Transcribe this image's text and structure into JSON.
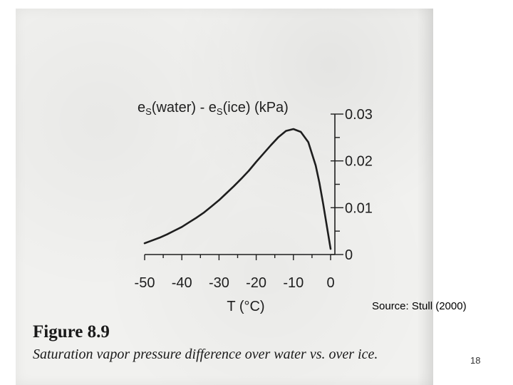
{
  "chart_data": {
    "type": "line",
    "title": "",
    "ylabel": "es(water) - es(ice)   (kPa)",
    "ylabel_parts": {
      "e1": "e",
      "s1": "S",
      "t1": "(water) - ",
      "e2": "e",
      "s2": "S",
      "t2": "(ice)   (kPa)"
    },
    "xlabel": "T (°C)",
    "xlim": [
      -50,
      0
    ],
    "ylim": [
      0,
      0.03
    ],
    "x_ticks": [
      -50,
      -40,
      -30,
      -20,
      -10,
      0
    ],
    "x_tick_labels": [
      "-50",
      "-40",
      "-30",
      "-20",
      "-10",
      "0"
    ],
    "y_ticks": [
      0,
      0.01,
      0.02,
      0.03
    ],
    "y_tick_labels": [
      "0",
      "0.01",
      "0.02",
      "0.03"
    ],
    "y_axis_position": "right",
    "grid": false,
    "series": [
      {
        "x": [
          -50,
          -48,
          -46,
          -44,
          -42,
          -40,
          -38,
          -36,
          -34,
          -32,
          -30,
          -28,
          -26,
          -24,
          -22,
          -20,
          -18,
          -16,
          -14,
          -12,
          -10,
          -8,
          -6,
          -4,
          -3,
          -2,
          -1,
          0
        ],
        "y": [
          0.0024,
          0.003,
          0.0036,
          0.0043,
          0.0051,
          0.0059,
          0.0069,
          0.0079,
          0.009,
          0.0103,
          0.0116,
          0.0131,
          0.0146,
          0.0162,
          0.0179,
          0.0198,
          0.0216,
          0.0234,
          0.0251,
          0.0264,
          0.0268,
          0.0262,
          0.024,
          0.019,
          0.0153,
          0.0108,
          0.006,
          0.0012
        ]
      }
    ]
  },
  "caption": {
    "figure_label": "Figure 8.9",
    "text": "Saturation vapor pressure difference over water vs. over ice."
  },
  "source": "Source: Stull (2000)",
  "slide_number": "18",
  "colors": {
    "ink": "#1e1e1e",
    "paper": "#f1f1ef",
    "background": "#ffffff"
  }
}
